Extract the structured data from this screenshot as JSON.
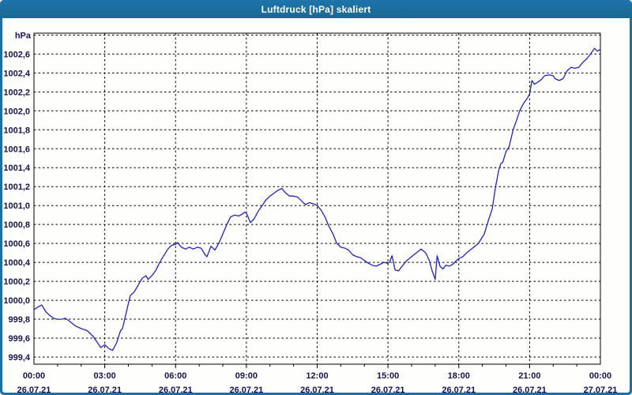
{
  "window": {
    "title": "Luftdruck [hPa] skaliert"
  },
  "colors": {
    "frame": "#1c6ea4",
    "titlebar": "#1c6ea4",
    "title_text": "#ffffff",
    "plot_background": "#fefefc",
    "grid": "#000000",
    "plot_border": "#000000",
    "line": "#2323bb",
    "tick_label": "#141450"
  },
  "chart_data": {
    "type": "line",
    "title": "Luftdruck [hPa] skaliert",
    "ylabel": "hPa",
    "unit_label": "hPa",
    "xlabel": "",
    "legend": [],
    "grid": "dashed",
    "xlim_hours": [
      0,
      24
    ],
    "ylim": [
      999.325,
      1002.82
    ],
    "grid_step_y": 0.2,
    "grid_min_y": 999.4,
    "grid_max_y": 1002.8,
    "minor_tick_every_hours": 1,
    "x_ticks": [
      {
        "hour": 0,
        "time": "00:00",
        "date": "26.07.21"
      },
      {
        "hour": 3,
        "time": "03:00",
        "date": "26.07.21"
      },
      {
        "hour": 6,
        "time": "06:00",
        "date": "26.07.21"
      },
      {
        "hour": 9,
        "time": "09:00",
        "date": "26.07.21"
      },
      {
        "hour": 12,
        "time": "12:00",
        "date": "26.07.21"
      },
      {
        "hour": 15,
        "time": "15:00",
        "date": "26.07.21"
      },
      {
        "hour": 18,
        "time": "18:00",
        "date": "26.07.21"
      },
      {
        "hour": 21,
        "time": "21:00",
        "date": "26.07.21"
      },
      {
        "hour": 24,
        "time": "00:00",
        "date": "27.07.21"
      }
    ],
    "y_ticks": [
      {
        "label": "999,4",
        "value": 999.4
      },
      {
        "label": "999,6",
        "value": 999.6
      },
      {
        "label": "999,8",
        "value": 999.8
      },
      {
        "label": "1000,0",
        "value": 1000.0
      },
      {
        "label": "1000,2",
        "value": 1000.2
      },
      {
        "label": "1000,4",
        "value": 1000.4
      },
      {
        "label": "1000,6",
        "value": 1000.6
      },
      {
        "label": "1000,8",
        "value": 1000.8
      },
      {
        "label": "1001,0",
        "value": 1001.0
      },
      {
        "label": "1001,2",
        "value": 1001.2
      },
      {
        "label": "1001,4",
        "value": 1001.4
      },
      {
        "label": "1001,6",
        "value": 1001.6
      },
      {
        "label": "1001,8",
        "value": 1001.8
      },
      {
        "label": "1002,0",
        "value": 1002.0
      },
      {
        "label": "1002,2",
        "value": 1002.2
      },
      {
        "label": "1002,4",
        "value": 1002.4
      },
      {
        "label": "1002,6",
        "value": 1002.6
      }
    ],
    "series": [
      {
        "name": "Luftdruck",
        "points": [
          [
            0.0,
            999.9
          ],
          [
            0.17,
            999.93
          ],
          [
            0.33,
            999.95
          ],
          [
            0.5,
            999.88
          ],
          [
            0.67,
            999.84
          ],
          [
            0.83,
            999.81
          ],
          [
            1.0,
            999.8
          ],
          [
            1.17,
            999.8
          ],
          [
            1.33,
            999.81
          ],
          [
            1.5,
            999.78
          ],
          [
            1.75,
            999.73
          ],
          [
            2.0,
            999.7
          ],
          [
            2.25,
            999.68
          ],
          [
            2.5,
            999.62
          ],
          [
            2.75,
            999.53
          ],
          [
            2.83,
            999.5
          ],
          [
            3.0,
            999.53
          ],
          [
            3.17,
            999.49
          ],
          [
            3.33,
            999.47
          ],
          [
            3.5,
            999.55
          ],
          [
            3.67,
            999.68
          ],
          [
            3.75,
            999.7
          ],
          [
            3.92,
            999.88
          ],
          [
            4.08,
            1000.05
          ],
          [
            4.25,
            1000.09
          ],
          [
            4.42,
            1000.16
          ],
          [
            4.58,
            1000.23
          ],
          [
            4.75,
            1000.26
          ],
          [
            4.83,
            1000.22
          ],
          [
            5.0,
            1000.26
          ],
          [
            5.17,
            1000.32
          ],
          [
            5.33,
            1000.4
          ],
          [
            5.5,
            1000.47
          ],
          [
            5.67,
            1000.54
          ],
          [
            5.83,
            1000.58
          ],
          [
            6.0,
            1000.59
          ],
          [
            6.08,
            1000.61
          ],
          [
            6.25,
            1000.56
          ],
          [
            6.42,
            1000.54
          ],
          [
            6.58,
            1000.56
          ],
          [
            6.75,
            1000.54
          ],
          [
            6.92,
            1000.56
          ],
          [
            7.08,
            1000.55
          ],
          [
            7.25,
            1000.48
          ],
          [
            7.33,
            1000.46
          ],
          [
            7.5,
            1000.57
          ],
          [
            7.67,
            1000.53
          ],
          [
            7.83,
            1000.6
          ],
          [
            8.0,
            1000.7
          ],
          [
            8.17,
            1000.8
          ],
          [
            8.33,
            1000.88
          ],
          [
            8.5,
            1000.9
          ],
          [
            8.67,
            1000.89
          ],
          [
            8.83,
            1000.91
          ],
          [
            8.92,
            1000.93
          ],
          [
            9.0,
            1000.92
          ],
          [
            9.17,
            1000.82
          ],
          [
            9.33,
            1000.86
          ],
          [
            9.5,
            1000.94
          ],
          [
            9.67,
            1001.0
          ],
          [
            9.83,
            1001.06
          ],
          [
            10.0,
            1001.1
          ],
          [
            10.17,
            1001.13
          ],
          [
            10.33,
            1001.16
          ],
          [
            10.5,
            1001.18
          ],
          [
            10.67,
            1001.13
          ],
          [
            10.83,
            1001.1
          ],
          [
            11.0,
            1001.1
          ],
          [
            11.17,
            1001.09
          ],
          [
            11.33,
            1001.05
          ],
          [
            11.5,
            1001.01
          ],
          [
            11.67,
            1001.03
          ],
          [
            11.83,
            1001.02
          ],
          [
            12.0,
            1001.0
          ],
          [
            12.17,
            1000.95
          ],
          [
            12.33,
            1000.88
          ],
          [
            12.5,
            1000.78
          ],
          [
            12.67,
            1000.7
          ],
          [
            12.83,
            1000.6
          ],
          [
            13.0,
            1000.56
          ],
          [
            13.17,
            1000.55
          ],
          [
            13.33,
            1000.53
          ],
          [
            13.5,
            1000.48
          ],
          [
            13.67,
            1000.46
          ],
          [
            13.83,
            1000.45
          ],
          [
            14.0,
            1000.42
          ],
          [
            14.17,
            1000.39
          ],
          [
            14.33,
            1000.37
          ],
          [
            14.5,
            1000.36
          ],
          [
            14.67,
            1000.38
          ],
          [
            14.83,
            1000.4
          ],
          [
            15.0,
            1000.39
          ],
          [
            15.08,
            1000.41
          ],
          [
            15.17,
            1000.47
          ],
          [
            15.3,
            1000.32
          ],
          [
            15.45,
            1000.31
          ],
          [
            15.6,
            1000.36
          ],
          [
            15.8,
            1000.42
          ],
          [
            16.0,
            1000.46
          ],
          [
            16.2,
            1000.5
          ],
          [
            16.4,
            1000.54
          ],
          [
            16.6,
            1000.5
          ],
          [
            16.75,
            1000.42
          ],
          [
            16.87,
            1000.31
          ],
          [
            17.0,
            1000.22
          ],
          [
            17.08,
            1000.47
          ],
          [
            17.2,
            1000.36
          ],
          [
            17.33,
            1000.33
          ],
          [
            17.45,
            1000.37
          ],
          [
            17.6,
            1000.36
          ],
          [
            17.75,
            1000.38
          ],
          [
            17.9,
            1000.42
          ],
          [
            18.0,
            1000.44
          ],
          [
            18.17,
            1000.46
          ],
          [
            18.33,
            1000.5
          ],
          [
            18.58,
            1000.55
          ],
          [
            18.83,
            1000.6
          ],
          [
            19.08,
            1000.7
          ],
          [
            19.25,
            1000.84
          ],
          [
            19.42,
            1000.97
          ],
          [
            19.55,
            1001.19
          ],
          [
            19.7,
            1001.38
          ],
          [
            19.78,
            1001.44
          ],
          [
            19.87,
            1001.46
          ],
          [
            20.0,
            1001.57
          ],
          [
            20.13,
            1001.62
          ],
          [
            20.3,
            1001.8
          ],
          [
            20.45,
            1001.9
          ],
          [
            20.58,
            1002.0
          ],
          [
            20.75,
            1002.08
          ],
          [
            20.92,
            1002.14
          ],
          [
            21.0,
            1002.18
          ],
          [
            21.1,
            1002.32
          ],
          [
            21.2,
            1002.28
          ],
          [
            21.33,
            1002.3
          ],
          [
            21.5,
            1002.33
          ],
          [
            21.63,
            1002.37
          ],
          [
            21.83,
            1002.38
          ],
          [
            22.0,
            1002.37
          ],
          [
            22.08,
            1002.34
          ],
          [
            22.25,
            1002.32
          ],
          [
            22.42,
            1002.34
          ],
          [
            22.58,
            1002.42
          ],
          [
            22.75,
            1002.46
          ],
          [
            22.92,
            1002.45
          ],
          [
            23.08,
            1002.46
          ],
          [
            23.25,
            1002.51
          ],
          [
            23.42,
            1002.55
          ],
          [
            23.58,
            1002.6
          ],
          [
            23.67,
            1002.63
          ],
          [
            23.75,
            1002.66
          ],
          [
            23.87,
            1002.63
          ],
          [
            24.0,
            1002.65
          ]
        ]
      }
    ]
  }
}
